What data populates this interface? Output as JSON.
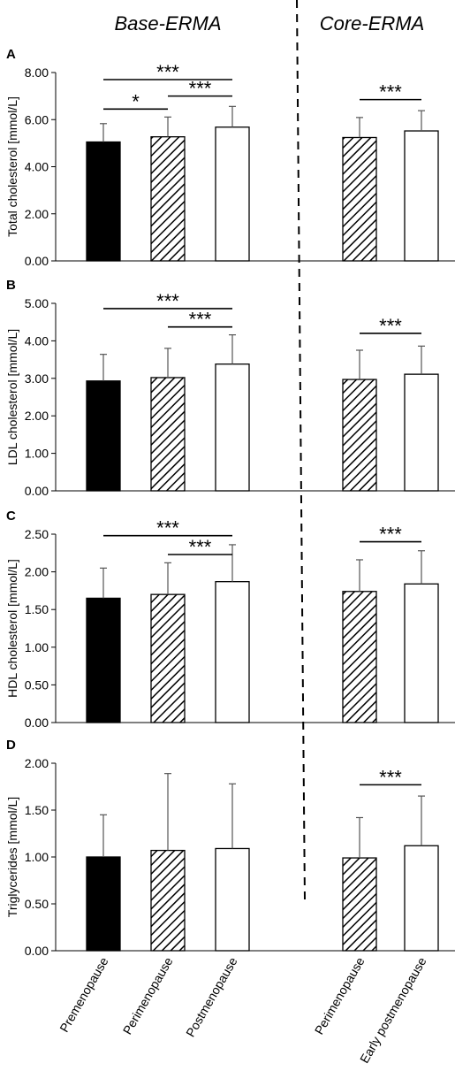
{
  "headers": {
    "left": "Base-ERMA",
    "right": "Core-ERMA"
  },
  "x_labels": [
    "Premenopause",
    "Perimenopause",
    "Postmenopause",
    "Perimenopause",
    "Early postmenopause"
  ],
  "chart_data": [
    {
      "panel": "A",
      "type": "bar",
      "ylabel": "Total cholesterol [mmol/L]",
      "ylim": [
        0,
        8
      ],
      "yticks": [
        "0.00",
        "2.00",
        "4.00",
        "6.00",
        "8.00"
      ],
      "series": [
        {
          "name": "Base-ERMA",
          "categories": [
            "Premenopause",
            "Perimenopause",
            "Postmenopause"
          ],
          "values": [
            5.05,
            5.27,
            5.68
          ],
          "errors": [
            0.78,
            0.84,
            0.88
          ],
          "fills": [
            "solid",
            "hatch",
            "open"
          ]
        },
        {
          "name": "Core-ERMA",
          "categories": [
            "Perimenopause",
            "Early postmenopause"
          ],
          "values": [
            5.24,
            5.52
          ],
          "errors": [
            0.85,
            0.86
          ],
          "fills": [
            "hatch",
            "open"
          ]
        }
      ],
      "annotations": [
        {
          "from": 0,
          "to": 2,
          "level": 7.7,
          "label": "***"
        },
        {
          "from": 0,
          "to": 1,
          "level": 6.45,
          "label": "*"
        },
        {
          "from": 1,
          "to": 2,
          "level": 7.0,
          "label": "***"
        },
        {
          "from": 3,
          "to": 4,
          "level": 6.85,
          "label": "***"
        }
      ]
    },
    {
      "panel": "B",
      "type": "bar",
      "ylabel": "LDL cholesterol [mmol/L]",
      "ylim": [
        0,
        5
      ],
      "yticks": [
        "0.00",
        "1.00",
        "2.00",
        "3.00",
        "4.00",
        "5.00"
      ],
      "series": [
        {
          "name": "Base-ERMA",
          "categories": [
            "Premenopause",
            "Perimenopause",
            "Postmenopause"
          ],
          "values": [
            2.93,
            3.02,
            3.38
          ],
          "errors": [
            0.71,
            0.78,
            0.78
          ],
          "fills": [
            "solid",
            "hatch",
            "open"
          ]
        },
        {
          "name": "Core-ERMA",
          "categories": [
            "Perimenopause",
            "Early postmenopause"
          ],
          "values": [
            2.97,
            3.11
          ],
          "errors": [
            0.78,
            0.75
          ],
          "fills": [
            "hatch",
            "open"
          ]
        }
      ],
      "annotations": [
        {
          "from": 0,
          "to": 2,
          "level": 4.86,
          "label": "***"
        },
        {
          "from": 1,
          "to": 2,
          "level": 4.37,
          "label": "***"
        },
        {
          "from": 3,
          "to": 4,
          "level": 4.2,
          "label": "***"
        }
      ]
    },
    {
      "panel": "C",
      "type": "bar",
      "ylabel": "HDL cholesterol [mmol/L]",
      "ylim": [
        0,
        2.5
      ],
      "yticks": [
        "0.00",
        "0.50",
        "1.00",
        "1.50",
        "2.00",
        "2.50"
      ],
      "series": [
        {
          "name": "Base-ERMA",
          "categories": [
            "Premenopause",
            "Perimenopause",
            "Postmenopause"
          ],
          "values": [
            1.65,
            1.7,
            1.87
          ],
          "errors": [
            0.4,
            0.42,
            0.49
          ],
          "fills": [
            "solid",
            "hatch",
            "open"
          ]
        },
        {
          "name": "Core-ERMA",
          "categories": [
            "Perimenopause",
            "Early postmenopause"
          ],
          "values": [
            1.74,
            1.84
          ],
          "errors": [
            0.42,
            0.44
          ],
          "fills": [
            "hatch",
            "open"
          ]
        }
      ],
      "annotations": [
        {
          "from": 0,
          "to": 2,
          "level": 2.48,
          "label": "***"
        },
        {
          "from": 1,
          "to": 2,
          "level": 2.23,
          "label": "***"
        },
        {
          "from": 3,
          "to": 4,
          "level": 2.4,
          "label": "***"
        }
      ]
    },
    {
      "panel": "D",
      "type": "bar",
      "ylabel": "Triglycerides [mmol/L]",
      "ylim": [
        0,
        2
      ],
      "yticks": [
        "0.00",
        "0.50",
        "1.00",
        "1.50",
        "2.00"
      ],
      "series": [
        {
          "name": "Base-ERMA",
          "categories": [
            "Premenopause",
            "Perimenopause",
            "Postmenopause"
          ],
          "values": [
            1.0,
            1.07,
            1.09
          ],
          "errors": [
            0.45,
            0.82,
            0.69
          ],
          "fills": [
            "solid",
            "hatch",
            "open"
          ]
        },
        {
          "name": "Core-ERMA",
          "categories": [
            "Perimenopause",
            "Early postmenopause"
          ],
          "values": [
            0.99,
            1.12
          ],
          "errors": [
            0.43,
            0.53
          ],
          "fills": [
            "hatch",
            "open"
          ]
        }
      ],
      "annotations": [
        {
          "from": 3,
          "to": 4,
          "level": 1.77,
          "label": "***"
        }
      ]
    }
  ]
}
